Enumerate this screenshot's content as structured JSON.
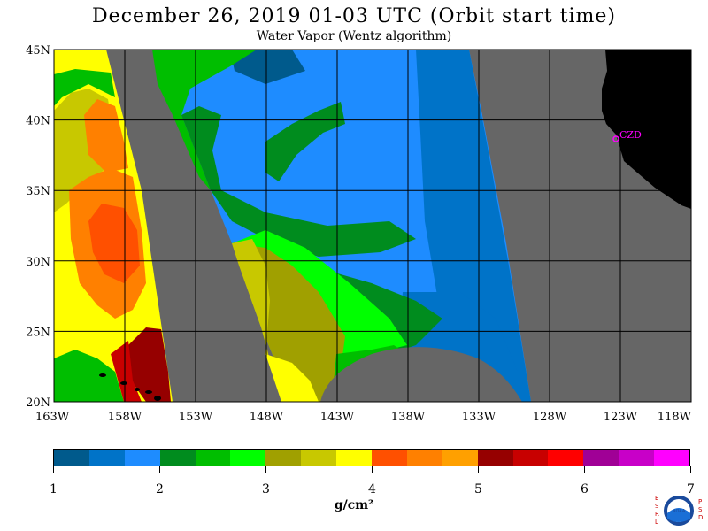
{
  "header": {
    "title": "December 26, 2019  01-03 UTC  (Orbit start time)",
    "subtitle": "Water Vapor (Wentz algorithm)"
  },
  "map": {
    "lat_labels": [
      "45N",
      "40N",
      "35N",
      "30N",
      "25N",
      "20N"
    ],
    "lon_labels": [
      "163W",
      "158W",
      "153W",
      "148W",
      "143W",
      "138W",
      "133W",
      "128W",
      "123W",
      "118W"
    ],
    "station_label": "CZD",
    "colors": {
      "no_data": "#666666",
      "land": "#000000",
      "station": "#ff00ff",
      "grid": "#000000"
    }
  },
  "legend": {
    "unit": "g/cm²",
    "tick_labels": [
      "1",
      "2",
      "3",
      "4",
      "5",
      "6",
      "7"
    ],
    "colors": [
      "#005a8c",
      "#0073c8",
      "#1e8cff",
      "#008c1e",
      "#00be00",
      "#00ff00",
      "#a0a000",
      "#c8c800",
      "#ffff00",
      "#ff5000",
      "#ff8000",
      "#ffa000",
      "#960000",
      "#c80000",
      "#ff0000",
      "#a00096",
      "#c800c8",
      "#ff00ff"
    ]
  },
  "logo": {
    "left_letters": "ESRL",
    "right_letters": "PSD",
    "center": "NOAA"
  }
}
